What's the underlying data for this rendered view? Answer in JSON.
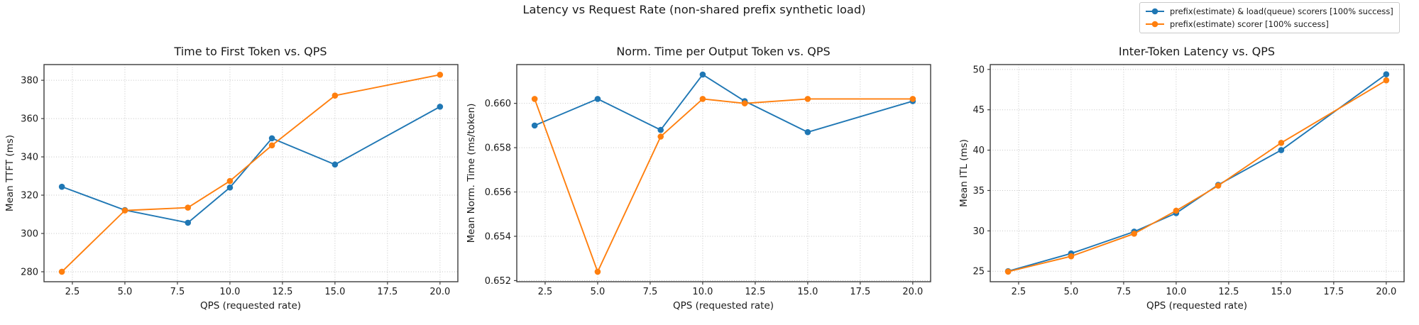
{
  "figure": {
    "suptitle": "Latency vs Request Rate (non-shared prefix synthetic load)"
  },
  "colors": {
    "series_blue": "#1f77b4",
    "series_orange": "#ff7f0e",
    "grid": "#c3c3c3",
    "spine": "#3c3c3c"
  },
  "legend": {
    "position": "figure-top-right",
    "entries": [
      {
        "label": "prefix(estimate) & load(queue) scorers [100% success]",
        "color": "#1f77b4",
        "marker": "line-circle"
      },
      {
        "label": "prefix(estimate) scorer [100% success]",
        "color": "#ff7f0e",
        "marker": "line-circle"
      }
    ]
  },
  "chart_data": [
    {
      "type": "line",
      "title": "Time to First Token vs. QPS",
      "xlabel": "QPS (requested rate)",
      "ylabel": "Mean TTFT (ms)",
      "grid": true,
      "x": [
        2,
        5,
        8,
        10,
        12,
        15,
        20
      ],
      "series": [
        {
          "name": "prefix(estimate) & load(queue) scorers [100% success]",
          "color": "#1f77b4",
          "values": [
            324.4,
            312.2,
            305.6,
            324.0,
            349.7,
            336.0,
            366.2
          ]
        },
        {
          "name": "prefix(estimate) scorer [100% success]",
          "color": "#ff7f0e",
          "values": [
            280.0,
            312.0,
            313.5,
            327.4,
            346.0,
            372.0,
            382.9
          ]
        }
      ],
      "xlim": [
        1.15,
        20.85
      ],
      "ylim": [
        274.8,
        388.2
      ],
      "xticks": [
        2.5,
        5.0,
        7.5,
        10.0,
        12.5,
        15.0,
        17.5,
        20.0
      ],
      "xtick_labels": [
        "2.5",
        "5.0",
        "7.5",
        "10.0",
        "12.5",
        "15.0",
        "17.5",
        "20.0"
      ],
      "yticks": [
        280,
        300,
        320,
        340,
        360,
        380
      ],
      "ytick_labels": [
        "280",
        "300",
        "320",
        "340",
        "360",
        "380"
      ]
    },
    {
      "type": "line",
      "title": "Norm. Time per Output Token vs. QPS",
      "xlabel": "QPS (requested rate)",
      "ylabel": "Mean Norm. Time (ms/token)",
      "grid": true,
      "x": [
        2,
        5,
        8,
        10,
        12,
        15,
        20
      ],
      "series": [
        {
          "name": "prefix(estimate) & load(queue) scorers [100% success]",
          "color": "#1f77b4",
          "values": [
            0.659,
            0.6602,
            0.6588,
            0.6613,
            0.6601,
            0.6587,
            0.6601
          ]
        },
        {
          "name": "prefix(estimate) scorer [100% success]",
          "color": "#ff7f0e",
          "values": [
            0.6602,
            0.6524,
            0.6585,
            0.6602,
            0.66,
            0.6602,
            0.6602
          ]
        }
      ],
      "xlim": [
        1.15,
        20.85
      ],
      "ylim": [
        0.65195,
        0.66175
      ],
      "xticks": [
        2.5,
        5.0,
        7.5,
        10.0,
        12.5,
        15.0,
        17.5,
        20.0
      ],
      "xtick_labels": [
        "2.5",
        "5.0",
        "7.5",
        "10.0",
        "12.5",
        "15.0",
        "17.5",
        "20.0"
      ],
      "yticks": [
        0.652,
        0.654,
        0.656,
        0.658,
        0.66
      ],
      "ytick_labels": [
        "0.652",
        "0.654",
        "0.656",
        "0.658",
        "0.660"
      ]
    },
    {
      "type": "line",
      "title": "Inter-Token Latency vs. QPS",
      "xlabel": "QPS (requested rate)",
      "ylabel": "Mean ITL (ms)",
      "grid": true,
      "x": [
        2,
        5,
        8,
        10,
        12,
        15,
        20
      ],
      "series": [
        {
          "name": "prefix(estimate) & load(queue) scorers [100% success]",
          "color": "#1f77b4",
          "values": [
            25.0,
            27.2,
            29.9,
            32.2,
            35.7,
            40.0,
            49.4
          ]
        },
        {
          "name": "prefix(estimate) scorer [100% success]",
          "color": "#ff7f0e",
          "values": [
            24.95,
            26.85,
            29.65,
            32.5,
            35.6,
            40.9,
            48.65
          ]
        }
      ],
      "xlim": [
        1.15,
        20.85
      ],
      "ylim": [
        23.7,
        50.6
      ],
      "xticks": [
        2.5,
        5.0,
        7.5,
        10.0,
        12.5,
        15.0,
        17.5,
        20.0
      ],
      "xtick_labels": [
        "2.5",
        "5.0",
        "7.5",
        "10.0",
        "12.5",
        "15.0",
        "17.5",
        "20.0"
      ],
      "yticks": [
        25,
        30,
        35,
        40,
        45,
        50
      ],
      "ytick_labels": [
        "25",
        "30",
        "35",
        "40",
        "45",
        "50"
      ]
    }
  ]
}
